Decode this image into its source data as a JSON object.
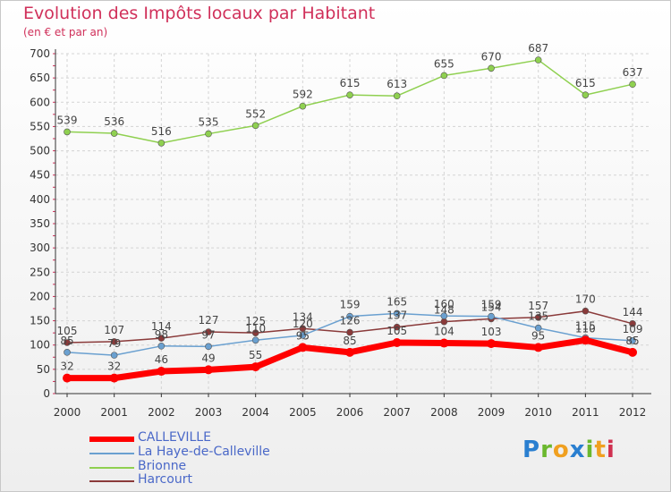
{
  "title": "Evolution des Impôts locaux par Habitant",
  "subtitle": "(en € et par an)",
  "logo": "Proxiti",
  "chart_data": {
    "type": "line",
    "title": "Evolution des Impôts locaux par Habitant",
    "ylabel": "(en € et par an)",
    "xlabel": "",
    "x": [
      "2000",
      "2001",
      "2002",
      "2003",
      "2004",
      "2005",
      "2006",
      "2007",
      "2008",
      "2009",
      "2010",
      "2011",
      "2012"
    ],
    "ylim": [
      0,
      700
    ],
    "yticks": [
      0,
      50,
      100,
      150,
      200,
      250,
      300,
      350,
      400,
      450,
      500,
      550,
      600,
      650,
      700
    ],
    "grid": true,
    "legend_position": "bottom-left",
    "series": [
      {
        "name": "CALLEVILLE",
        "color": "#ff0000",
        "values": [
          32,
          32,
          46,
          49,
          55,
          95,
          85,
          105,
          104,
          103,
          95,
          110,
          85
        ],
        "labels": [
          "32",
          "32",
          "46",
          "49",
          "55",
          "95",
          "85",
          "105",
          "104",
          "103",
          "95",
          "110",
          "85"
        ]
      },
      {
        "name": "La Haye-de-Calleville",
        "color": "#6aa0d0",
        "values": [
          85,
          79,
          98,
          97,
          110,
          120,
          159,
          165,
          160,
          159,
          135,
          115,
          109
        ],
        "labels": [
          "85",
          "79",
          "98",
          "97",
          "110",
          "120",
          "159",
          "165",
          "160",
          "159",
          "135",
          "115",
          "109"
        ]
      },
      {
        "name": "Brionne",
        "color": "#8fd050",
        "values": [
          539,
          536,
          516,
          535,
          552,
          592,
          615,
          613,
          655,
          670,
          687,
          615,
          637
        ],
        "labels": [
          "539",
          "536",
          "516",
          "535",
          "552",
          "592",
          "615",
          "613",
          "655",
          "670",
          "687",
          "615",
          "637"
        ]
      },
      {
        "name": "Harcourt",
        "color": "#8a3a3a",
        "values": [
          105,
          107,
          114,
          127,
          125,
          134,
          126,
          137,
          148,
          154,
          157,
          170,
          144
        ],
        "labels": [
          "105",
          "107",
          "114",
          "127",
          "125",
          "134",
          "126",
          "137",
          "148",
          "154",
          "157",
          "170",
          "144"
        ]
      }
    ]
  }
}
